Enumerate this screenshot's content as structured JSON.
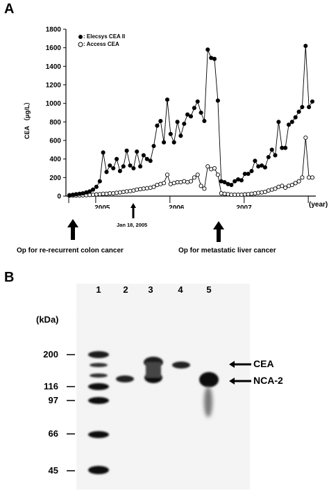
{
  "panel_a": {
    "letter": "A",
    "ylabel": "CEA （μg/L）",
    "xunit_label": "(year)",
    "legend": [
      {
        "marker": "filled",
        "label": ": Elecsys CEA II"
      },
      {
        "marker": "open",
        "label": ": Access CEA"
      }
    ],
    "annotations": {
      "date_label": "Jan 18, 2005",
      "op1_label": "Op for re-recurrent colon cancer",
      "op2_label": "Op for metastatic liver cancer"
    }
  },
  "panel_b": {
    "letter": "B",
    "kda_label": "(kDa)",
    "markers": [
      "200",
      "116",
      "97",
      "66",
      "45"
    ],
    "lanes": [
      "1",
      "2",
      "3",
      "4",
      "5"
    ],
    "band_labels": {
      "cea": "CEA",
      "nca2": "NCA-2"
    }
  },
  "chart_data": {
    "type": "line",
    "title": "",
    "xlabel": "(year)",
    "ylabel": "CEA （μg/L）",
    "ylim": [
      0,
      1800
    ],
    "yticks": [
      0,
      200,
      400,
      600,
      800,
      1000,
      1200,
      1400,
      1600,
      1800
    ],
    "xtick_labels": [
      "2005",
      "2006",
      "2007"
    ],
    "grid": false,
    "legend_position": "top-left",
    "series": [
      {
        "name": "Elecsys CEA II",
        "marker": "filled-circle",
        "values": [
          10,
          15,
          20,
          25,
          30,
          40,
          50,
          70,
          100,
          160,
          470,
          260,
          330,
          300,
          400,
          270,
          320,
          490,
          330,
          300,
          480,
          320,
          440,
          400,
          380,
          540,
          760,
          810,
          580,
          1040,
          670,
          580,
          800,
          650,
          780,
          880,
          860,
          950,
          1020,
          900,
          810,
          1580,
          1490,
          1480,
          1030,
          160,
          150,
          130,
          120,
          160,
          180,
          170,
          240,
          240,
          270,
          380,
          320,
          330,
          310,
          420,
          500,
          440,
          800,
          520,
          520,
          770,
          800,
          850,
          910,
          960,
          1620,
          960,
          1020
        ]
      },
      {
        "name": "Access CEA",
        "marker": "open-circle",
        "values": [
          5,
          5,
          6,
          7,
          8,
          10,
          12,
          15,
          18,
          20,
          25,
          25,
          30,
          30,
          35,
          40,
          45,
          50,
          55,
          60,
          70,
          75,
          80,
          85,
          90,
          100,
          120,
          130,
          140,
          230,
          130,
          140,
          150,
          150,
          160,
          150,
          160,
          200,
          230,
          110,
          80,
          320,
          290,
          300,
          230,
          30,
          25,
          20,
          15,
          15,
          15,
          15,
          18,
          20,
          25,
          30,
          35,
          40,
          45,
          60,
          70,
          80,
          100,
          110,
          90,
          110,
          120,
          140,
          160,
          200,
          630,
          200,
          200
        ]
      }
    ]
  }
}
